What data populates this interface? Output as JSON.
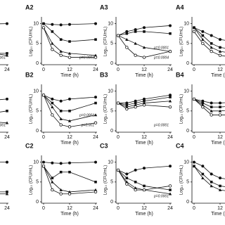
{
  "chart_data": [
    {
      "type": "line",
      "xlabel": "Time (h)",
      "ylabel": "Log₁₀ (CFU/mL)",
      "x": [
        0,
        4,
        8,
        12,
        24
      ],
      "xlim": [
        0,
        24
      ],
      "ylim": [
        0,
        11
      ],
      "xticks": [
        0,
        12,
        24
      ],
      "yticks": [
        0,
        5,
        10
      ],
      "series": [
        {
          "color": "#111",
          "marker": "circle",
          "values": [
            9,
            9.5,
            9.8,
            9.9,
            10
          ]
        },
        {
          "color": "#111",
          "marker": "square",
          "values": [
            7,
            4,
            3,
            2.5,
            2.5
          ]
        },
        {
          "color": "#111",
          "marker": "triangle",
          "values": [
            7,
            6,
            5,
            3,
            2
          ]
        }
      ],
      "annotations": [
        "p=0.0001"
      ]
    },
    {
      "type": "line",
      "title": "A2",
      "xlabel": "Time (h)",
      "ylabel": "Log₁₀ (CFU/mL)",
      "x": [
        0,
        4,
        8,
        12,
        24
      ],
      "xlim": [
        0,
        24
      ],
      "ylim": [
        0,
        11
      ],
      "xticks": [
        0,
        12,
        24
      ],
      "yticks": [
        0,
        5,
        10
      ],
      "series": [
        {
          "color": "#111",
          "marker": "circle",
          "values": [
            10,
            9.8,
            9.7,
            9.8,
            10
          ]
        },
        {
          "color": "#111",
          "marker": "square",
          "values": [
            10,
            8,
            6,
            5.5,
            6
          ]
        },
        {
          "color": "#111",
          "marker": "triangle",
          "values": [
            9,
            5,
            3,
            2.5,
            2
          ]
        },
        {
          "color": "#111",
          "marker": "open",
          "values": [
            9,
            3.5,
            2,
            1.5,
            1.5
          ]
        }
      ],
      "annotations": [
        "p=0.0001"
      ]
    },
    {
      "type": "line",
      "title": "A3",
      "xlabel": "Time (h)",
      "ylabel": "Log₁₀ (CFU/mL)",
      "x": [
        0,
        4,
        8,
        12,
        24
      ],
      "xlim": [
        0,
        24
      ],
      "ylim": [
        0,
        11
      ],
      "xticks": [
        0,
        12,
        24
      ],
      "yticks": [
        0,
        5,
        10
      ],
      "series": [
        {
          "color": "#111",
          "marker": "circle",
          "values": [
            7,
            8,
            8.5,
            9,
            9.5
          ]
        },
        {
          "color": "#111",
          "marker": "square",
          "values": [
            7,
            7.5,
            8,
            8,
            7.5
          ]
        },
        {
          "color": "#111",
          "marker": "triangle",
          "values": [
            7,
            6,
            5,
            4,
            3
          ]
        },
        {
          "color": "#111",
          "marker": "open",
          "values": [
            7,
            4,
            2,
            1.5,
            3
          ]
        }
      ],
      "annotations": [
        "p=0.0004",
        "p=0.0001"
      ]
    },
    {
      "type": "line",
      "title": "A4",
      "xlabel": "Time (h)",
      "ylabel": "Log₁₀ (CFU/mL)",
      "x": [
        0,
        4,
        8,
        12,
        24
      ],
      "xlim": [
        0,
        24
      ],
      "ylim": [
        0,
        11
      ],
      "xticks": [
        0,
        12,
        24
      ],
      "yticks": [
        0,
        5,
        10
      ],
      "series": [
        {
          "color": "#111",
          "marker": "circle",
          "values": [
            9,
            8,
            7,
            6,
            5
          ]
        },
        {
          "color": "#111",
          "marker": "square",
          "values": [
            9,
            7,
            5,
            4,
            3
          ]
        },
        {
          "color": "#111",
          "marker": "triangle",
          "values": [
            9,
            6,
            4,
            3,
            2
          ]
        },
        {
          "color": "#111",
          "marker": "open",
          "values": [
            8,
            5,
            3,
            2,
            1
          ]
        }
      ]
    },
    {
      "type": "line",
      "xlabel": "Time (h)",
      "ylabel": "Log₁₀ (CFU/mL)",
      "x": [
        0,
        4,
        8,
        12,
        24
      ],
      "xlim": [
        0,
        24
      ],
      "ylim": [
        0,
        11
      ],
      "xticks": [
        0,
        12,
        24
      ],
      "yticks": [
        0,
        5,
        10
      ],
      "series": [
        {
          "color": "#111",
          "marker": "circle",
          "values": [
            7,
            6,
            7,
            7.5,
            8
          ]
        },
        {
          "color": "#111",
          "marker": "square",
          "values": [
            7,
            5,
            4,
            4,
            5
          ]
        },
        {
          "color": "#111",
          "marker": "triangle",
          "values": [
            7,
            4,
            3,
            2.5,
            2
          ]
        }
      ],
      "annotations": [
        "p=0.001"
      ]
    },
    {
      "type": "line",
      "title": "B2",
      "xlabel": "Time (h)",
      "ylabel": "Log₁₀ (CFU/mL)",
      "x": [
        0,
        4,
        8,
        12,
        24
      ],
      "xlim": [
        0,
        24
      ],
      "ylim": [
        0,
        11
      ],
      "xticks": [
        0,
        12,
        24
      ],
      "yticks": [
        0,
        5,
        10
      ],
      "series": [
        {
          "color": "#111",
          "marker": "circle",
          "values": [
            9,
            8,
            7.5,
            8,
            8.5
          ]
        },
        {
          "color": "#111",
          "marker": "square",
          "values": [
            9,
            7,
            5,
            5,
            7
          ]
        },
        {
          "color": "#111",
          "marker": "triangle",
          "values": [
            9,
            6,
            3,
            2.5,
            4
          ]
        },
        {
          "color": "#111",
          "marker": "open",
          "values": [
            9,
            4,
            1.5,
            1,
            2
          ]
        }
      ],
      "annotations": [
        "p=0.001",
        "p=0.0001"
      ]
    },
    {
      "type": "line",
      "title": "B3",
      "xlabel": "Time (h)",
      "ylabel": "Log₁₀ (CFU/mL)",
      "x": [
        0,
        4,
        8,
        12,
        24
      ],
      "xlim": [
        0,
        24
      ],
      "ylim": [
        0,
        11
      ],
      "xticks": [
        0,
        12,
        24
      ],
      "yticks": [
        0,
        5,
        10
      ],
      "series": [
        {
          "color": "#111",
          "marker": "circle",
          "values": [
            7,
            7,
            7.5,
            8,
            9
          ]
        },
        {
          "color": "#111",
          "marker": "square",
          "values": [
            7,
            6.5,
            7,
            7.5,
            8.5
          ]
        },
        {
          "color": "#111",
          "marker": "triangle",
          "values": [
            7,
            6,
            6.5,
            7,
            7.5
          ]
        },
        {
          "color": "#111",
          "marker": "open",
          "values": [
            7,
            5.5,
            6,
            6.5,
            6
          ]
        }
      ],
      "annotations": [
        "p=0.0001"
      ]
    },
    {
      "type": "line",
      "title": "B4",
      "xlabel": "Time (h)",
      "ylabel": "Log₁₀ (CFU/mL)",
      "x": [
        0,
        4,
        8,
        12,
        24
      ],
      "xlim": [
        0,
        24
      ],
      "ylim": [
        0,
        11
      ],
      "xticks": [
        0,
        12,
        24
      ],
      "yticks": [
        0,
        5,
        10
      ],
      "series": [
        {
          "color": "#111",
          "marker": "circle",
          "values": [
            8,
            7.5,
            7,
            7,
            7.5
          ]
        },
        {
          "color": "#111",
          "marker": "square",
          "values": [
            8,
            7,
            6,
            6,
            6.5
          ]
        },
        {
          "color": "#111",
          "marker": "triangle",
          "values": [
            8,
            6.5,
            5,
            5,
            5.5
          ]
        },
        {
          "color": "#111",
          "marker": "open",
          "values": [
            8,
            6,
            4,
            4,
            4
          ]
        }
      ]
    },
    {
      "type": "line",
      "xlabel": "Time (h)",
      "ylabel": "Log₁₀ (CFU/mL)",
      "x": [
        0,
        4,
        8,
        12,
        24
      ],
      "xlim": [
        0,
        24
      ],
      "ylim": [
        0,
        11
      ],
      "xticks": [
        0,
        12,
        24
      ],
      "yticks": [
        0,
        5,
        10
      ],
      "series": [
        {
          "color": "#111",
          "marker": "circle",
          "values": [
            9,
            9.5,
            9.8,
            10,
            10
          ]
        },
        {
          "color": "#111",
          "marker": "square",
          "values": [
            8,
            5,
            3,
            2.5,
            2.5
          ]
        },
        {
          "color": "#111",
          "marker": "triangle",
          "values": [
            8,
            4,
            2.5,
            2,
            2
          ]
        }
      ]
    },
    {
      "type": "line",
      "title": "C2",
      "xlabel": "Time (h)",
      "ylabel": "Log₁₀ (CFU/mL)",
      "x": [
        0,
        4,
        8,
        12,
        24
      ],
      "xlim": [
        0,
        24
      ],
      "ylim": [
        0,
        11
      ],
      "xticks": [
        0,
        12,
        24
      ],
      "yticks": [
        0,
        5,
        10
      ],
      "series": [
        {
          "color": "#111",
          "marker": "circle",
          "values": [
            10,
            9.8,
            9.7,
            9.8,
            10
          ]
        },
        {
          "color": "#111",
          "marker": "square",
          "values": [
            9,
            6,
            7.5,
            7.5,
            5
          ]
        },
        {
          "color": "#111",
          "marker": "triangle",
          "values": [
            9,
            5,
            3,
            2.5,
            3
          ]
        },
        {
          "color": "#111",
          "marker": "open",
          "values": [
            9,
            3,
            2,
            2,
            2.5
          ]
        }
      ]
    },
    {
      "type": "line",
      "title": "C3",
      "xlabel": "Time (h)",
      "ylabel": "Log₁₀ (CFU/mL)",
      "x": [
        0,
        4,
        8,
        12,
        24
      ],
      "xlim": [
        0,
        24
      ],
      "ylim": [
        0,
        11
      ],
      "xticks": [
        0,
        12,
        24
      ],
      "yticks": [
        0,
        5,
        10
      ],
      "series": [
        {
          "color": "#111",
          "marker": "circle",
          "values": [
            8,
            7,
            8,
            8.5,
            9
          ]
        },
        {
          "color": "#111",
          "marker": "square",
          "values": [
            8,
            6,
            5,
            4,
            3
          ]
        },
        {
          "color": "#111",
          "marker": "triangle",
          "values": [
            8,
            5,
            3.5,
            3,
            2
          ]
        },
        {
          "color": "#111",
          "marker": "open",
          "values": [
            8,
            4.5,
            3,
            3,
            4
          ]
        }
      ],
      "annotations": [
        "p=0.0001"
      ]
    },
    {
      "type": "line",
      "title": "C4",
      "xlabel": "Time (h)",
      "ylabel": "Log₁₀ (CFU/mL)",
      "x": [
        0,
        4,
        8,
        12,
        24
      ],
      "xlim": [
        0,
        24
      ],
      "ylim": [
        0,
        11
      ],
      "xticks": [
        0,
        12,
        24
      ],
      "yticks": [
        0,
        5,
        10
      ],
      "series": [
        {
          "color": "#111",
          "marker": "circle",
          "values": [
            10,
            9,
            7,
            6,
            5
          ]
        },
        {
          "color": "#111",
          "marker": "square",
          "values": [
            9,
            7,
            5,
            4,
            3
          ]
        },
        {
          "color": "#111",
          "marker": "triangle",
          "values": [
            9,
            6,
            4,
            3,
            2
          ]
        }
      ]
    }
  ]
}
